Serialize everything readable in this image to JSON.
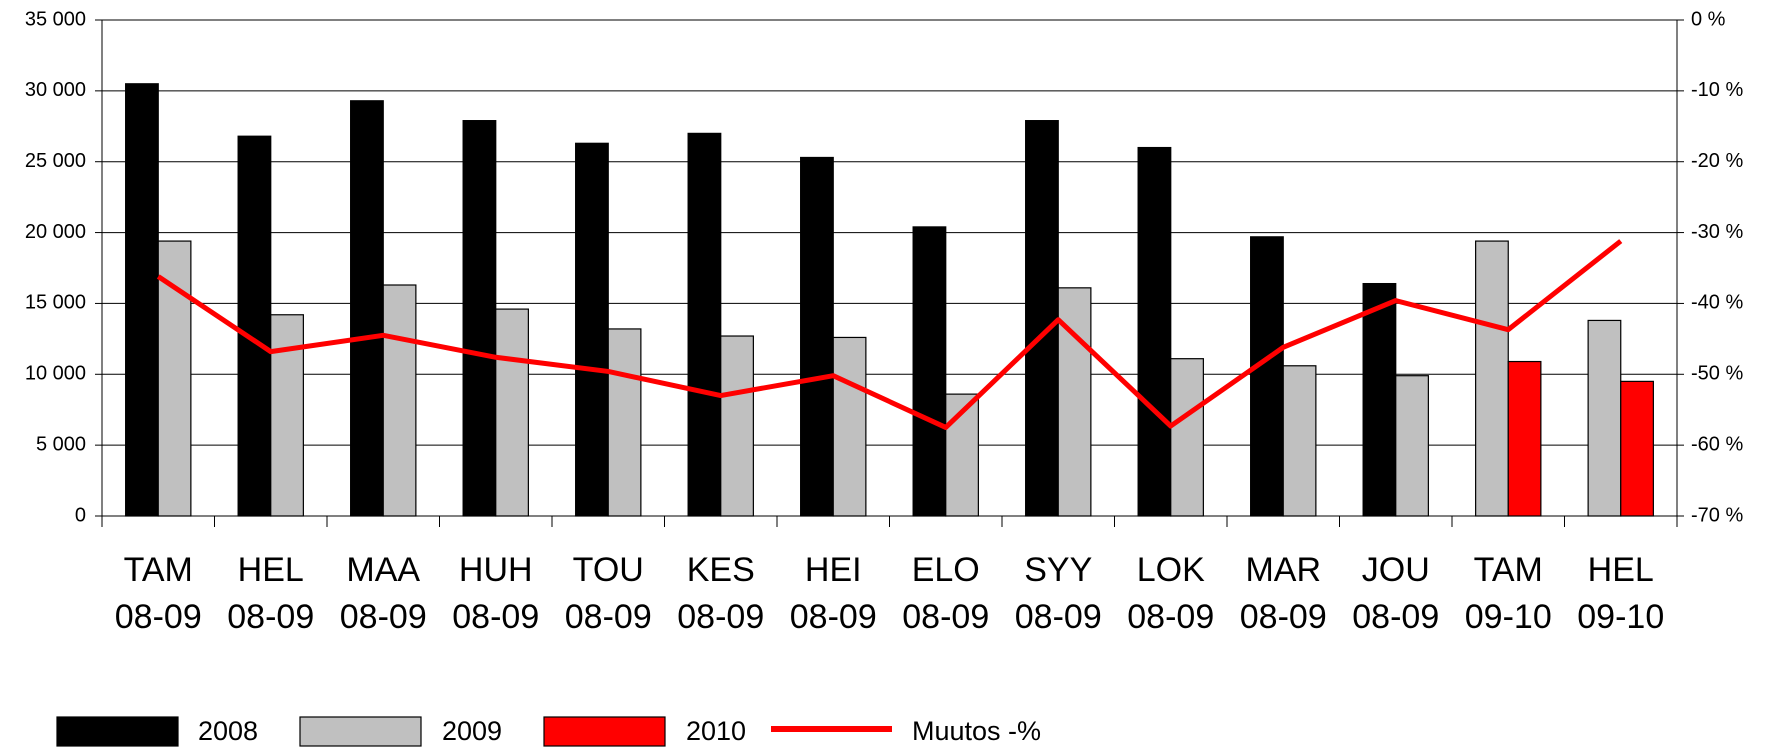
{
  "chart_data": {
    "type": "bar",
    "categories": [
      "TAM 08-09",
      "HEL 08-09",
      "MAA 08-09",
      "HUH 08-09",
      "TOU 08-09",
      "KES 08-09",
      "HEI 08-09",
      "ELO 08-09",
      "SYY 08-09",
      "LOK 08-09",
      "MAR 08-09",
      "JOU 08-09",
      "TAM 09-10",
      "HEL 09-10"
    ],
    "series": [
      {
        "name": "2008",
        "color": "#000000",
        "values": [
          30500,
          26800,
          29300,
          27900,
          26300,
          27000,
          25300,
          20400,
          27900,
          26000,
          19700,
          16400,
          null,
          null
        ]
      },
      {
        "name": "2009",
        "color": "#c0c0c0",
        "values": [
          19400,
          14200,
          16300,
          14600,
          13200,
          12700,
          12600,
          8600,
          16100,
          11100,
          10600,
          9900,
          19400,
          13800
        ]
      },
      {
        "name": "2010",
        "color": "#ff0000",
        "values": [
          null,
          null,
          null,
          null,
          null,
          null,
          null,
          null,
          null,
          null,
          null,
          null,
          10900,
          9500
        ]
      },
      {
        "name": "Muutos -%",
        "color": "#ff0000",
        "type": "line",
        "axis": "y2",
        "values": [
          -36.2,
          -46.8,
          -44.5,
          -47.6,
          -49.6,
          -53.0,
          -50.2,
          -57.5,
          -42.3,
          -57.3,
          -46.2,
          -39.6,
          -43.7,
          -31.2
        ]
      }
    ],
    "ylim": [
      0,
      35000
    ],
    "yticks": [
      0,
      {
        "value": 5000,
        "label": "5 000"
      },
      {
        "value": 10000,
        "label": "10 000"
      },
      {
        "value": 15000,
        "label": "15 000"
      },
      {
        "value": 20000,
        "label": "20 000"
      },
      {
        "value": 25000,
        "label": "25 000"
      },
      {
        "value": 30000,
        "label": "30 000"
      },
      {
        "value": 35000,
        "label": "35 000"
      }
    ],
    "y2lim": [
      -70,
      0
    ],
    "y2ticks": [
      {
        "value": -70,
        "label": "-70 %"
      },
      {
        "value": -60,
        "label": "-60 %"
      },
      {
        "value": -50,
        "label": "-50 %"
      },
      {
        "value": -40,
        "label": "-40 %"
      },
      {
        "value": -30,
        "label": "-30 %"
      },
      {
        "value": -20,
        "label": "-20 %"
      },
      {
        "value": -10,
        "label": "-10 %"
      },
      {
        "value": 0,
        "label": "0 %"
      }
    ],
    "grid": true,
    "legend": "bottom"
  }
}
